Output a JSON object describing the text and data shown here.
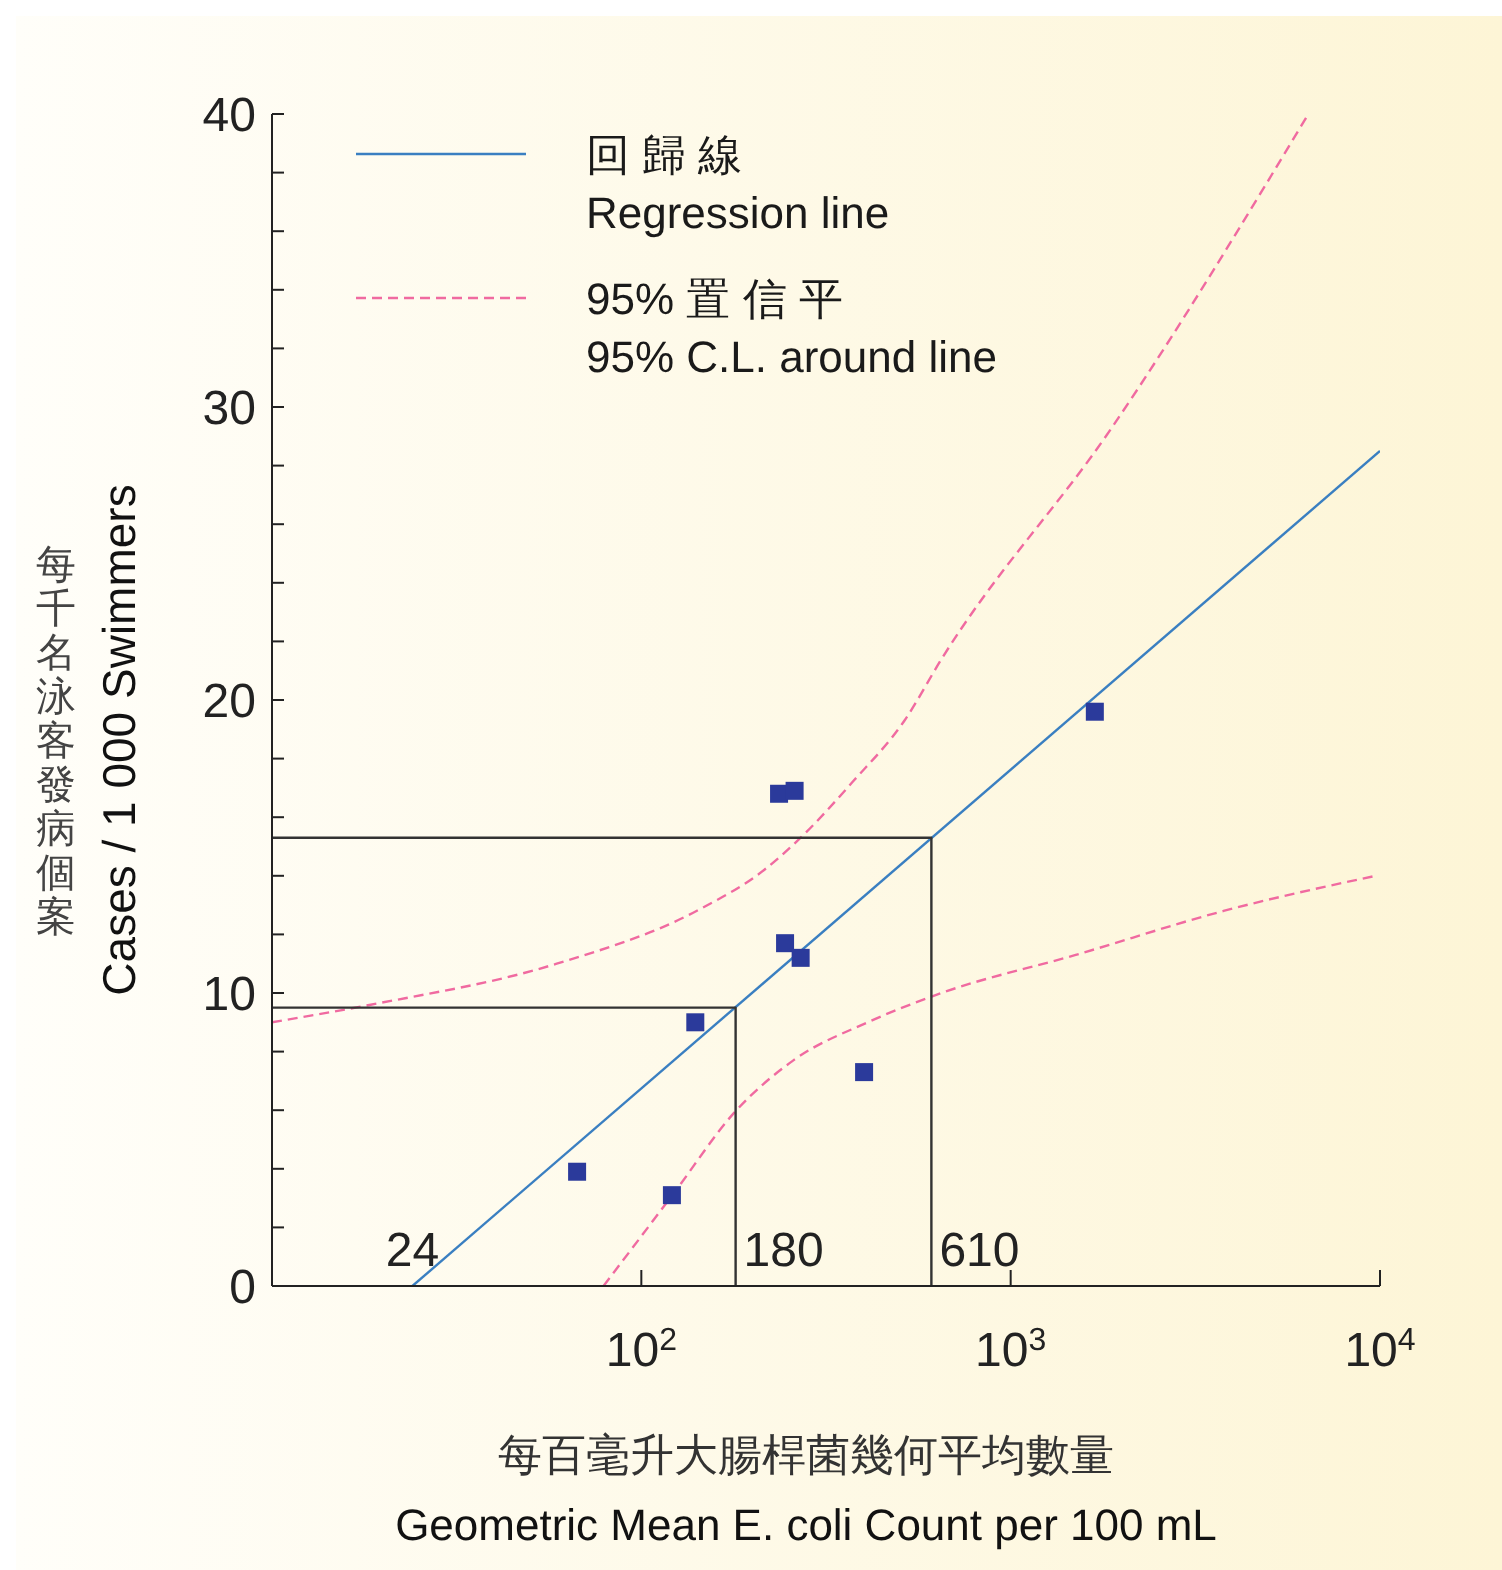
{
  "chart_data": {
    "type": "scatter",
    "xlabel": "每百毫升大腸桿菌幾何平均數量\nGeometric  Mean E. coli Count  per 100 mL",
    "ylabel": "每千名泳客發病個案\nCases / 1 000 Swimmers",
    "log": "x",
    "xlim": [
      10,
      10000
    ],
    "xticks": [
      {
        "value": 100,
        "label": "10$^{2}$"
      },
      {
        "value": 1000,
        "label": "10$^{3}$"
      },
      {
        "value": 10000,
        "label": "10$^{4}$"
      }
    ],
    "ylim": [
      0,
      40
    ],
    "yticks": [
      0,
      {
        "value": 2,
        "label": null
      },
      {
        "value": 4,
        "label": null
      },
      {
        "value": 6,
        "label": null
      },
      {
        "value": 8,
        "label": null
      },
      10,
      {
        "value": 12,
        "label": null
      },
      {
        "value": 14,
        "label": null
      },
      {
        "value": 16,
        "label": null
      },
      {
        "value": 18,
        "label": null
      },
      20,
      {
        "value": 22,
        "label": null
      },
      {
        "value": 24,
        "label": null
      },
      {
        "value": 26,
        "label": null
      },
      {
        "value": 28,
        "label": null
      },
      30,
      {
        "value": 32,
        "label": null
      },
      {
        "value": 34,
        "label": null
      },
      {
        "value": 36,
        "label": null
      },
      {
        "value": 38,
        "label": null
      },
      40
    ],
    "legend": "top left",
    "series": [
      {
        "color": "#2b3a9b",
        "marker": "square",
        "x": [
          67,
          121,
          140,
          236,
          260,
          245,
          270,
          401,
          1690
        ],
        "values": [
          3.9,
          3.1,
          9.0,
          16.8,
          16.9,
          11.7,
          11.2,
          7.3,
          19.6
        ]
      },
      {
        "type": "line",
        "name": "回 歸 線\nRegression line",
        "color": "#3a7fc1",
        "line_style": "solid",
        "x": [
          24,
          10000
        ],
        "values": [
          0,
          28.5
        ]
      },
      {
        "type": "line",
        "name": "95% 置 信 平\n95% C.L. around line",
        "color": "#f06aa0",
        "line_style": "dashed",
        "x": [
          10,
          18.5,
          59,
          141,
          215,
          270,
          373,
          516,
          650,
          1880,
          6400
        ],
        "values": [
          9.0,
          9.6,
          11.0,
          12.8,
          14.2,
          15.3,
          17.2,
          19.3,
          21.4,
          29.3,
          40
        ]
      },
      {
        "type": "line",
        "color": "#f06aa0",
        "line_style": "dashed",
        "x": [
          79,
          123,
          178,
          258,
          410,
          650,
          1500,
          3770,
          9730
        ],
        "values": [
          0,
          3.2,
          5.9,
          7.7,
          9.0,
          10.0,
          11.3,
          12.8,
          14.0
        ]
      },
      {
        "type": "line",
        "color": "#333333",
        "line_style": "solid",
        "x": [
          10,
          180,
          180
        ],
        "values": [
          9.5,
          9.5,
          0
        ]
      },
      {
        "type": "line",
        "color": "#333333",
        "line_style": "solid",
        "x": [
          10,
          610,
          610
        ],
        "values": [
          15.3,
          15.3,
          0
        ]
      }
    ],
    "annotations": [
      {
        "text": "24",
        "x": 24,
        "y": 0
      },
      {
        "text": "180",
        "x": 180,
        "y": 0
      },
      {
        "text": "610",
        "x": 610,
        "y": 0
      }
    ]
  }
}
